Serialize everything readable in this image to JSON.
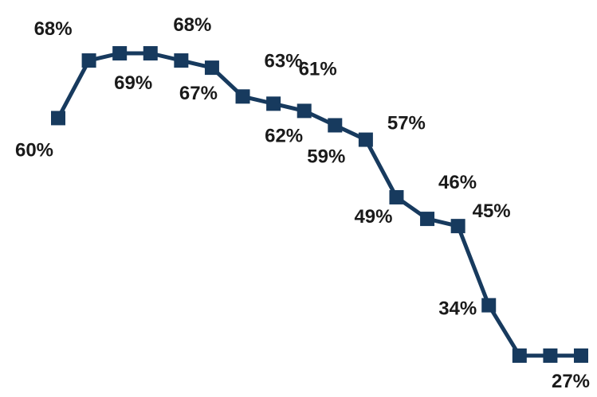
{
  "chart_data": {
    "type": "line",
    "title": "",
    "xlabel": "",
    "ylabel": "",
    "x": [
      1,
      2,
      3,
      4,
      5,
      6,
      7,
      8,
      9,
      10,
      11,
      12,
      13,
      14,
      15,
      16,
      17,
      18
    ],
    "ylim": [
      27,
      69
    ],
    "grid": false,
    "legend": "none",
    "series": [
      {
        "color": "#173a5e",
        "marker": "square",
        "values": [
          60,
          68,
          69,
          69,
          68,
          67,
          63,
          62,
          61,
          59,
          57,
          49,
          46,
          45,
          34,
          27,
          27,
          27
        ],
        "labels": [
          "60%",
          "68%",
          "69%",
          "",
          "68%",
          "67%",
          "63%",
          "62%",
          "61%",
          "59%",
          "57%",
          "49%",
          "46%",
          "45%",
          "34%",
          "",
          "",
          "27%"
        ]
      }
    ]
  }
}
